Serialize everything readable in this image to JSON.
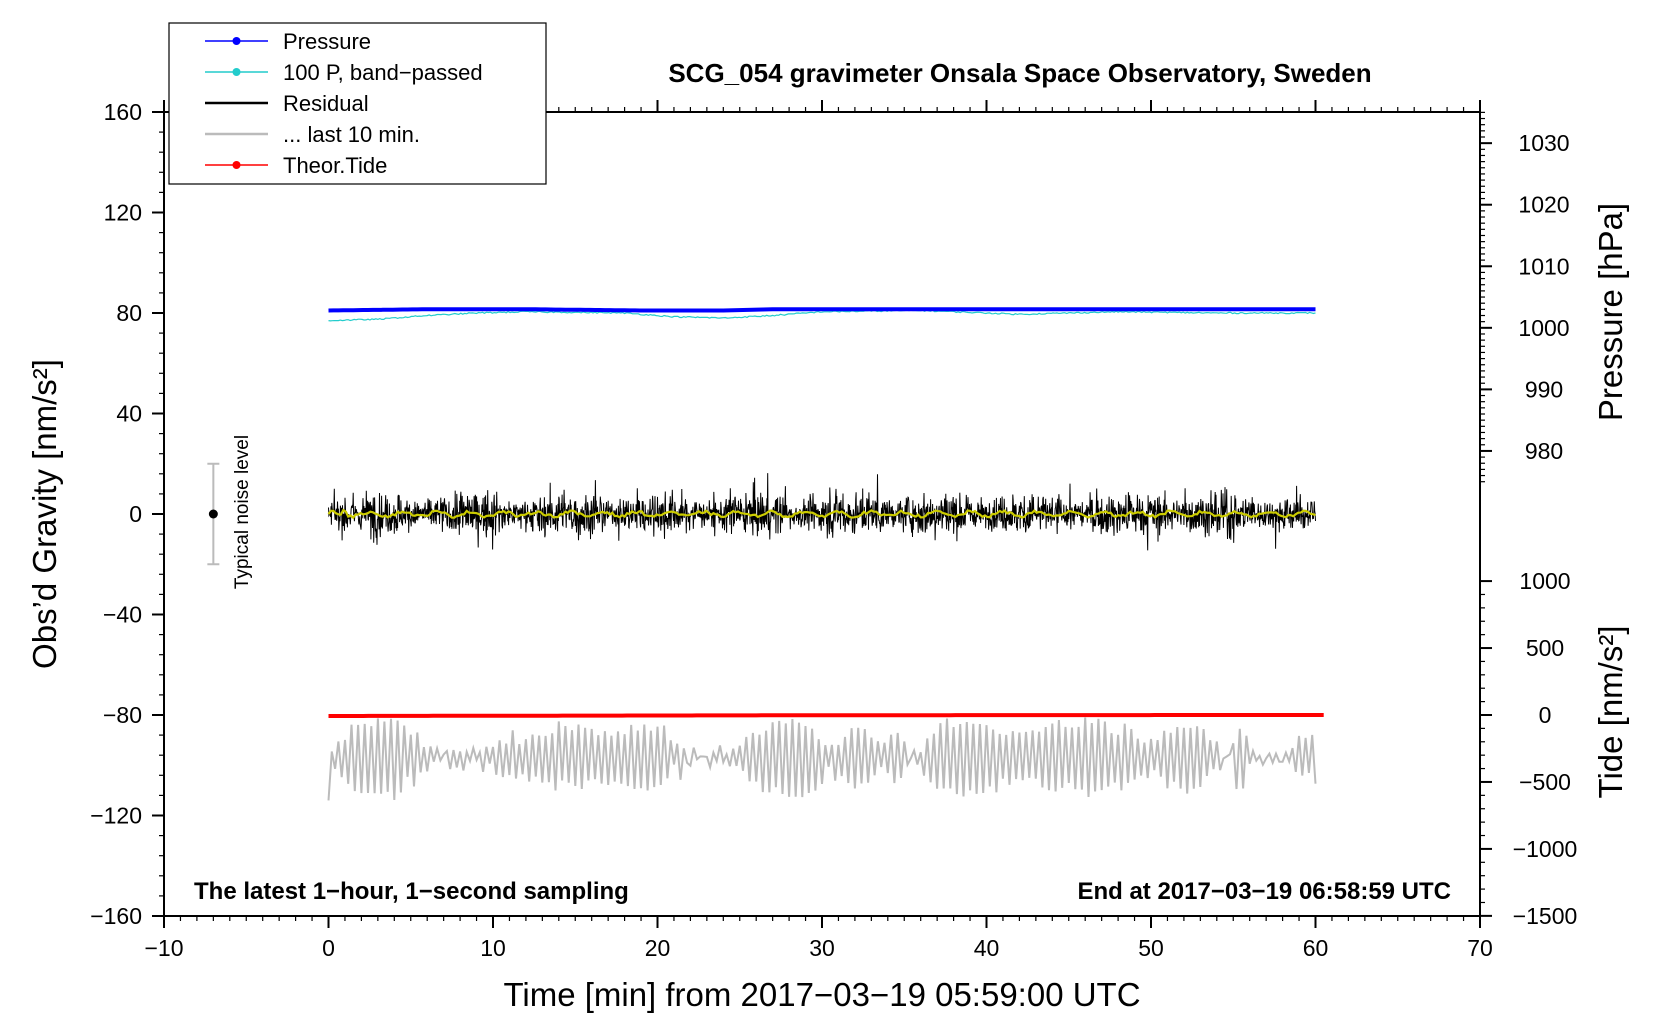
{
  "chart_data": {
    "type": "line",
    "title": "SCG_054 gravimeter Onsala Space Observatory, Sweden",
    "xlabel": "Time [min] from 2017−03−19 05:59:00 UTC",
    "ylabel_left": "Obs’d Gravity [nm/s²]",
    "ylabel_right_top": "Pressure [hPa]",
    "ylabel_right_bottom": "Tide [nm/s²]",
    "xlim": [
      -10,
      70
    ],
    "ylim": [
      -160,
      160
    ],
    "x_ticks": [
      -10,
      0,
      10,
      20,
      30,
      40,
      50,
      60,
      70
    ],
    "x_tick_labels": [
      "−10",
      "0",
      "10",
      "20",
      "30",
      "40",
      "50",
      "60",
      "70"
    ],
    "y_ticks": [
      -160,
      -120,
      -80,
      -40,
      0,
      40,
      80,
      120,
      160
    ],
    "y_tick_labels": [
      "−160",
      "−120",
      "−80",
      "−40",
      "0",
      "40",
      "80",
      "120",
      "160"
    ],
    "pressure_axis": {
      "ticks": [
        980,
        990,
        1000,
        1010,
        1020,
        1030
      ],
      "tick_labels": [
        "980",
        "990",
        "1000",
        "1010",
        "1020",
        "1030"
      ],
      "gravity_at_1000": 74.1,
      "gravity_per_hpa": 2.45
    },
    "tide_axis": {
      "ticks": [
        -1500,
        -1000,
        -500,
        0,
        500,
        1000
      ],
      "tick_labels": [
        "−1500",
        "−1000",
        "−500",
        "0",
        "500",
        "1000"
      ],
      "gravity_at_0": -80,
      "gravity_per_unit": 0.0533
    },
    "legend": {
      "position": "top-left",
      "entries": [
        {
          "label": "Pressure",
          "color": "#0000ff",
          "marker": true
        },
        {
          "label": "100 P, band−passed",
          "color": "#22cccc",
          "marker": true
        },
        {
          "label": "Residual",
          "color": "#000000",
          "marker": false
        },
        {
          "label": "... last 10 min.",
          "color": "#bbbbbb",
          "marker": false
        },
        {
          "label": "Theor.Tide",
          "color": "#ff0000",
          "marker": true
        }
      ]
    },
    "annotations": {
      "left": "The latest 1−hour, 1−second sampling",
      "right": "End at 2017−03−19 06:58:59 UTC"
    },
    "noise": {
      "label": "Typical noise level",
      "x": -7,
      "y": 0,
      "yerr": 20
    },
    "series": [
      {
        "name": "Pressure",
        "color": "#0000ff",
        "x": [
          0,
          6,
          12,
          19,
          24,
          27,
          36,
          42,
          48,
          54,
          60
        ],
        "y": [
          81,
          81.5,
          81.5,
          81,
          81,
          81.5,
          81.5,
          81.5,
          81.5,
          81.5,
          81.5
        ]
      },
      {
        "name": "100 P, band-passed",
        "color": "#22cccc",
        "x": [
          0,
          3,
          6,
          9,
          12,
          18,
          21,
          24,
          27,
          30,
          36,
          42,
          45,
          48,
          54,
          57,
          60
        ],
        "y": [
          77,
          77.5,
          79,
          80,
          80.5,
          80,
          78.5,
          78,
          79,
          80.5,
          81,
          79.5,
          80,
          80.5,
          80,
          80,
          80
        ]
      },
      {
        "name": "Residual",
        "color": "#000000",
        "x_range": [
          0,
          60
        ],
        "amplitude": 14,
        "peak": 30
      },
      {
        "name": "Residual smoothed",
        "color": "#cccc00",
        "x_range": [
          0,
          60
        ],
        "y": 0
      },
      {
        "name": "... last 10 min.",
        "color": "#bbbbbb",
        "x_range": [
          0,
          60
        ],
        "center": -97,
        "amplitude": 13
      },
      {
        "name": "Theor.Tide",
        "color": "#ff0000",
        "x": [
          0,
          10,
          20,
          30,
          40,
          50,
          60.5
        ],
        "y": [
          -80.4,
          -80.3,
          -80.2,
          -80.1,
          -80.05,
          -80.02,
          -80
        ]
      }
    ]
  }
}
